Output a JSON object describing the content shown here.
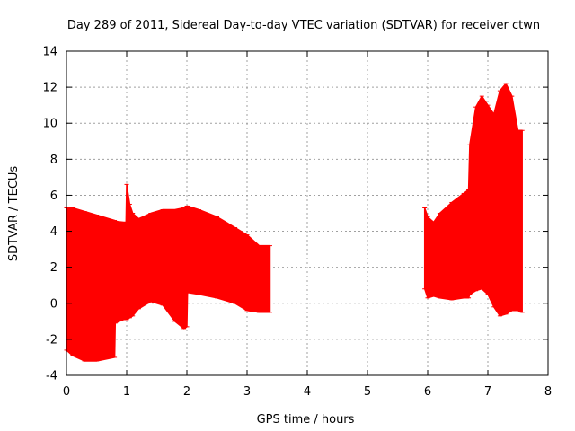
{
  "chart_data": {
    "type": "area",
    "title": "Day 289 of 2011, Sidereal Day-to-day VTEC variation (SDTVAR) for receiver ctwn",
    "xlabel": "GPS time / hours",
    "ylabel": "SDTVAR / TECUs",
    "xlim": [
      0,
      8
    ],
    "ylim": [
      -4,
      14
    ],
    "x_ticks": [
      0,
      1,
      2,
      3,
      4,
      5,
      6,
      7,
      8
    ],
    "y_ticks": [
      -4,
      -2,
      0,
      2,
      4,
      6,
      8,
      10,
      12,
      14
    ],
    "grid": true,
    "series": [
      {
        "name": "SDTVAR segment 1",
        "color": "#ff0000",
        "x": [
          0.0,
          0.1,
          0.3,
          0.5,
          0.8,
          0.81,
          0.95,
          0.99,
          1.0,
          1.05,
          1.1,
          1.2,
          1.4,
          1.6,
          1.8,
          1.95,
          2.0,
          2.01,
          2.2,
          2.5,
          2.8,
          3.0,
          3.2,
          3.38
        ],
        "upper": [
          5.3,
          5.3,
          5.1,
          4.9,
          4.6,
          4.55,
          4.5,
          4.5,
          6.6,
          5.5,
          5.0,
          4.7,
          5.0,
          5.2,
          5.2,
          5.3,
          5.4,
          5.4,
          5.2,
          4.8,
          4.2,
          3.8,
          3.2,
          3.2
        ],
        "lower": [
          -2.6,
          -2.9,
          -3.2,
          -3.2,
          -3.0,
          -1.1,
          -0.9,
          -0.9,
          -0.9,
          -0.8,
          -0.7,
          -0.3,
          0.1,
          -0.1,
          -1.0,
          -1.4,
          -1.3,
          0.6,
          0.5,
          0.3,
          0.0,
          -0.4,
          -0.5,
          -0.5
        ]
      },
      {
        "name": "SDTVAR segment 2",
        "color": "#ff0000",
        "x": [
          5.95,
          6.0,
          6.1,
          6.2,
          6.4,
          6.6,
          6.68,
          6.7,
          6.8,
          6.9,
          7.0,
          7.1,
          7.2,
          7.3,
          7.4,
          7.5,
          7.57
        ],
        "upper": [
          5.3,
          4.8,
          4.5,
          5.0,
          5.6,
          6.1,
          6.3,
          8.8,
          10.9,
          11.5,
          11.0,
          10.5,
          11.8,
          12.2,
          11.5,
          9.6,
          9.6
        ],
        "lower": [
          0.8,
          0.3,
          0.4,
          0.3,
          0.2,
          0.3,
          0.3,
          0.5,
          0.7,
          0.8,
          0.5,
          -0.2,
          -0.7,
          -0.6,
          -0.4,
          -0.4,
          -0.5
        ]
      }
    ]
  }
}
